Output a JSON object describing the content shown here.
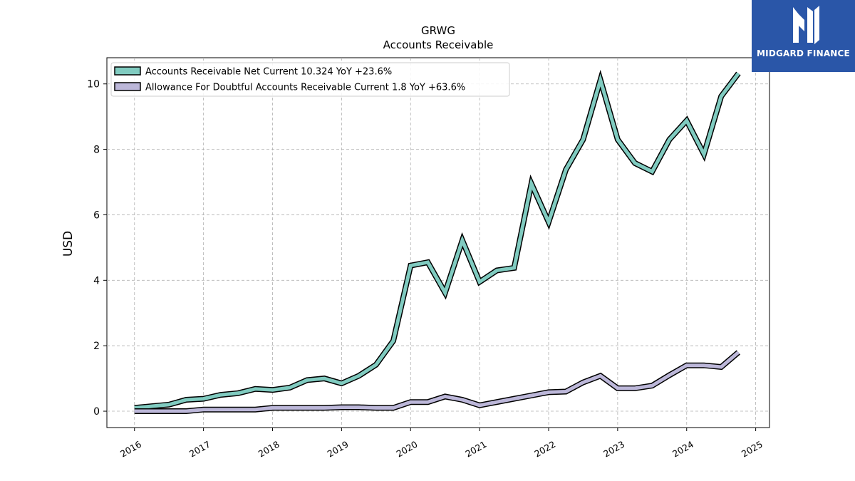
{
  "brand": {
    "name": "MIDGARD FINANCE",
    "background": "#2a56a8",
    "icon": "midgard-logo-icon"
  },
  "chart_data": {
    "type": "line",
    "title": "GRWG",
    "subtitle": "Accounts Receivable",
    "xlabel": "",
    "ylabel": "USD",
    "xlim": [
      2015.6,
      2025.2
    ],
    "ylim": [
      -0.5,
      10.8
    ],
    "x_ticks": [
      "2016",
      "2017",
      "2018",
      "2019",
      "2020",
      "2021",
      "2022",
      "2023",
      "2024",
      "2025"
    ],
    "y_ticks": [
      "0",
      "2",
      "4",
      "6",
      "8",
      "10"
    ],
    "grid": true,
    "legend_position": "top-left",
    "series": [
      {
        "name": "Accounts Receivable Net Current  10.324 YoY +23.6%",
        "color": "#80cbc0",
        "x": [
          2016.0,
          2016.5,
          2016.75,
          2017.0,
          2017.25,
          2017.5,
          2017.75,
          2018.0,
          2018.25,
          2018.5,
          2018.75,
          2019.0,
          2019.25,
          2019.5,
          2019.75,
          2020.0,
          2020.25,
          2020.5,
          2020.75,
          2021.0,
          2021.25,
          2021.5,
          2021.75,
          2022.0,
          2022.25,
          2022.5,
          2022.75,
          2023.0,
          2023.25,
          2023.5,
          2023.75,
          2024.0,
          2024.25,
          2024.5,
          2024.75
        ],
        "values": [
          0.1,
          0.2,
          0.35,
          0.38,
          0.5,
          0.55,
          0.68,
          0.65,
          0.72,
          0.95,
          1.0,
          0.85,
          1.08,
          1.42,
          2.15,
          4.45,
          4.55,
          3.62,
          5.22,
          3.95,
          4.3,
          4.38,
          6.95,
          5.78,
          7.38,
          8.3,
          10.12,
          8.3,
          7.58,
          7.32,
          8.3,
          8.88,
          7.85,
          9.62,
          10.32
        ]
      },
      {
        "name": "Allowance For Doubtful Accounts Receivable Current  1.8 YoY +63.6%",
        "color": "#bcb7d9",
        "x": [
          2016.0,
          2016.75,
          2017.0,
          2017.75,
          2018.0,
          2018.75,
          2019.0,
          2019.25,
          2019.5,
          2019.75,
          2020.0,
          2020.25,
          2020.5,
          2020.75,
          2021.0,
          2021.25,
          2021.5,
          2021.75,
          2022.0,
          2022.25,
          2022.5,
          2022.75,
          2023.0,
          2023.25,
          2023.5,
          2023.75,
          2024.0,
          2024.25,
          2024.5,
          2024.75
        ],
        "values": [
          0.0,
          0.0,
          0.05,
          0.05,
          0.1,
          0.1,
          0.12,
          0.12,
          0.1,
          0.1,
          0.28,
          0.28,
          0.45,
          0.35,
          0.18,
          0.28,
          0.38,
          0.48,
          0.58,
          0.6,
          0.88,
          1.08,
          0.7,
          0.7,
          0.78,
          1.1,
          1.4,
          1.4,
          1.35,
          1.8
        ]
      }
    ]
  }
}
